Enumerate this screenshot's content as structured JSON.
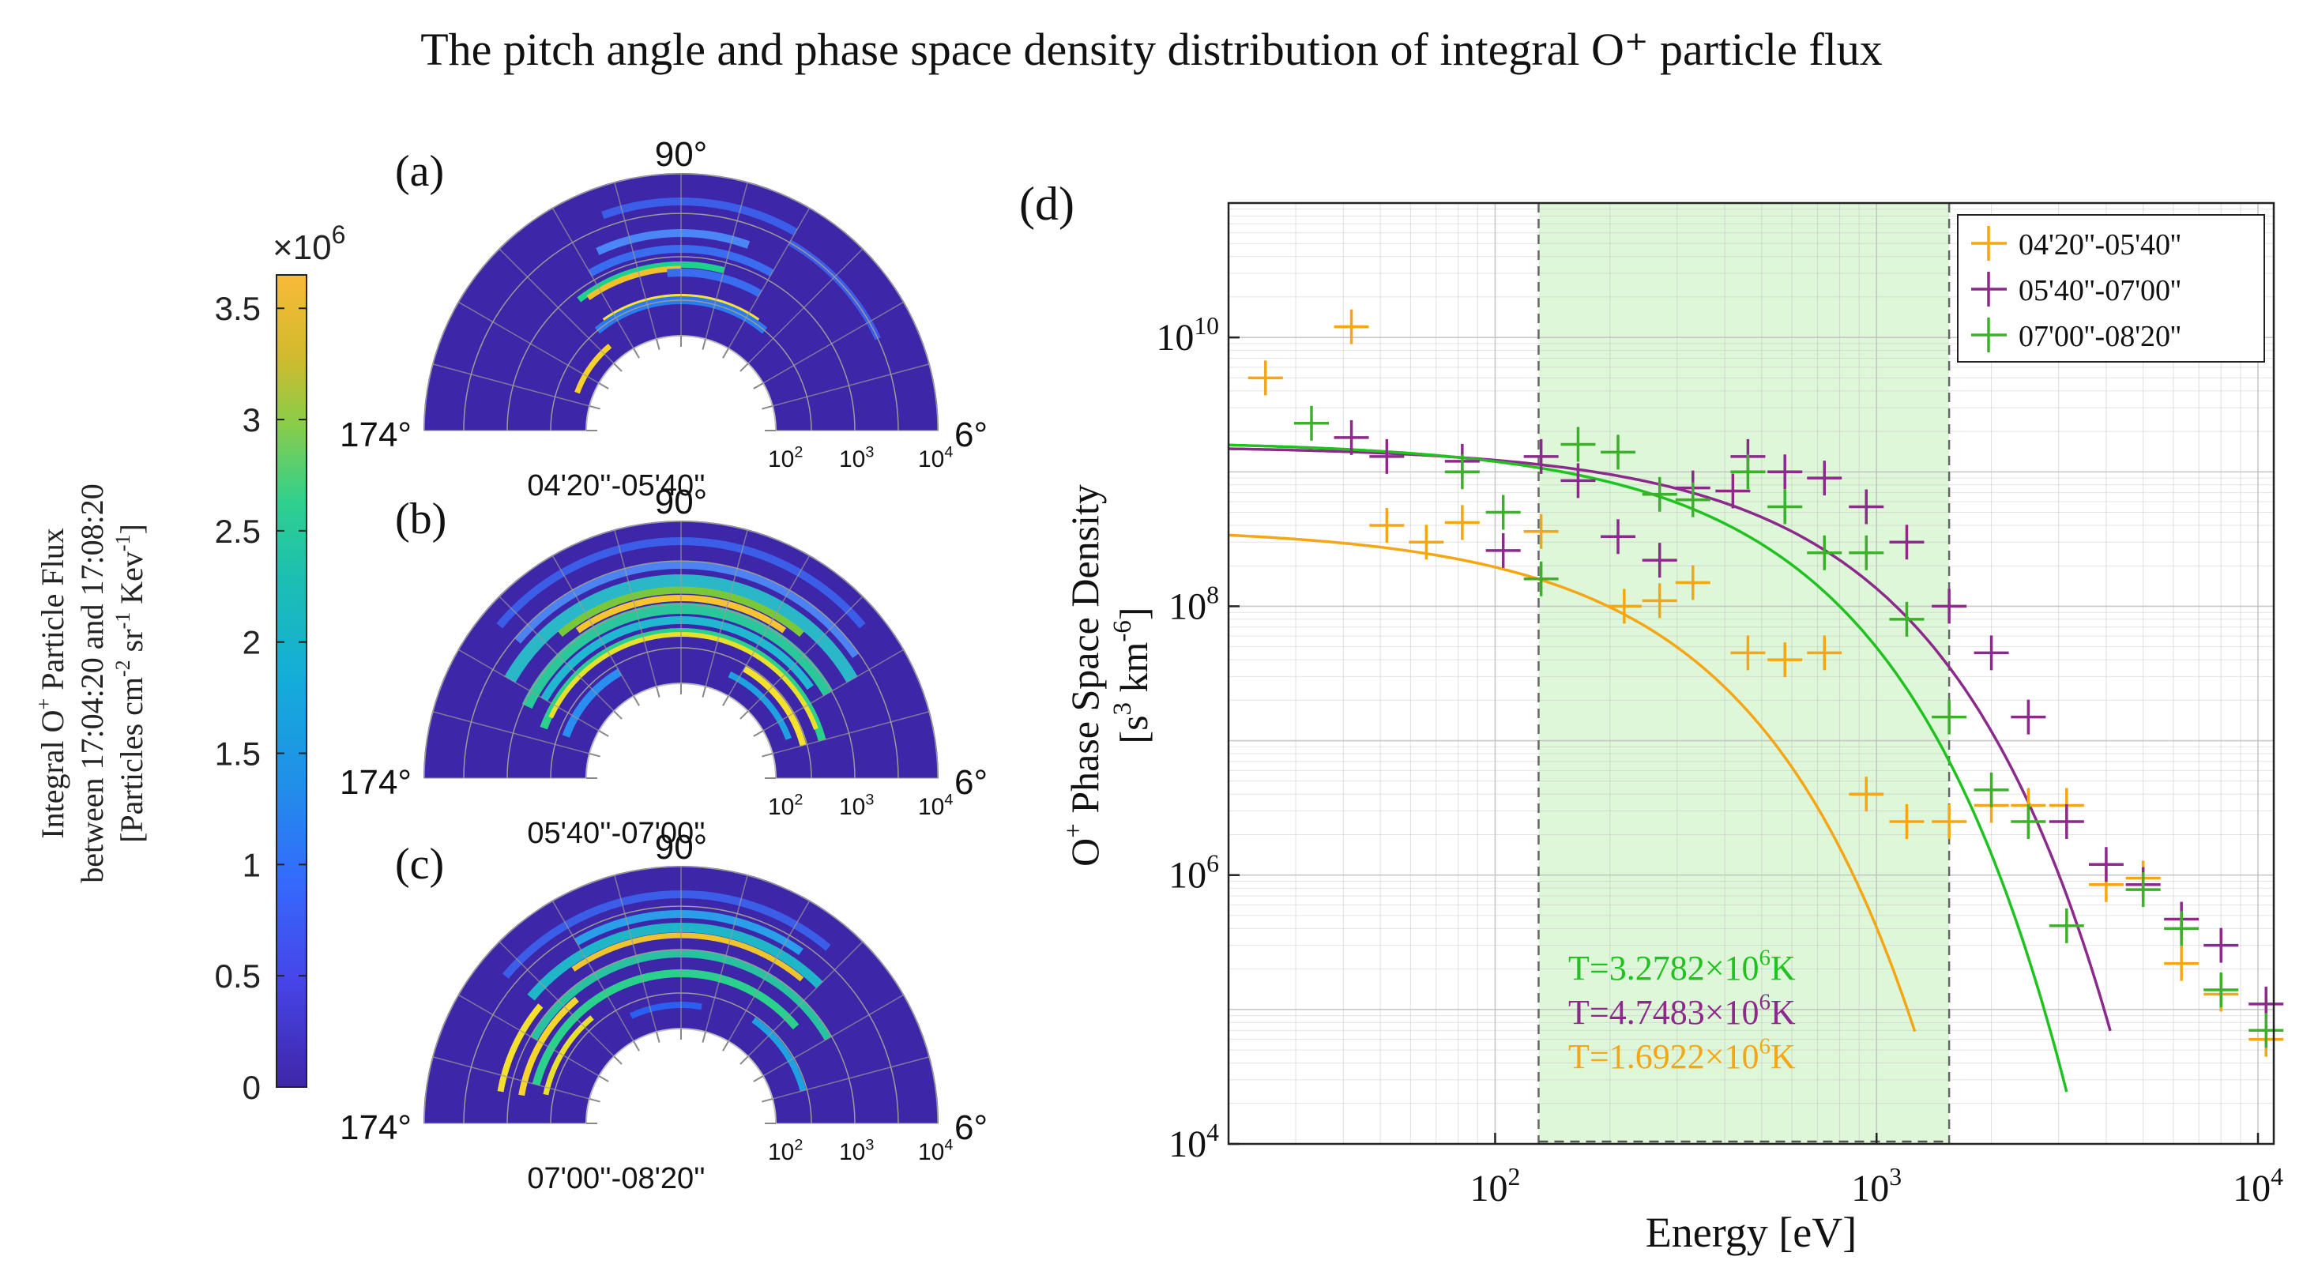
{
  "title": "The pitch angle and phase space density distribution  of integral O⁺ particle flux",
  "colorbar": {
    "multiplier": "×10",
    "multiplier_exp": "6",
    "ticks": [
      "0",
      "0.5",
      "1",
      "1.5",
      "2",
      "2.5",
      "3",
      "3.5"
    ],
    "tick_values": [
      0,
      0.5,
      1,
      1.5,
      2,
      2.5,
      3,
      3.5
    ],
    "max": 3.65,
    "label_line1_pre": "Integral O",
    "label_line1_sup": "+",
    "label_line1_post": " Particle Flux",
    "label_line2": "between 17:04:20 and 17:08:20",
    "label_line3": "[Particles cm",
    "label_line3_exp1": "-2",
    "label_line3_mid1": " sr",
    "label_line3_exp2": "-1",
    "label_line3_mid2": " Kev",
    "label_line3_exp3": "-1",
    "label_line3_end": "]"
  },
  "polar_panels": [
    {
      "letter": "(a)",
      "top": "90°",
      "left": "174°",
      "right": "6°",
      "subtitle": "04'20''-05'40''",
      "ticks": [
        "10",
        "10",
        "10"
      ],
      "tick_exps": [
        "2",
        "3",
        "4"
      ]
    },
    {
      "letter": "(b)",
      "top": "90°",
      "left": "174°",
      "right": "6°",
      "subtitle": "05'40''-07'00''",
      "ticks": [
        "10",
        "10",
        "10"
      ],
      "tick_exps": [
        "2",
        "3",
        "4"
      ]
    },
    {
      "letter": "(c)",
      "top": "90°",
      "left": "174°",
      "right": "6°",
      "subtitle": "07'00''-08'20''",
      "ticks": [
        "10",
        "10",
        "10"
      ],
      "tick_exps": [
        "2",
        "3",
        "4"
      ]
    }
  ],
  "chart_data": {
    "type": "scatter",
    "panel_label": "(d)",
    "xlabel": "Energy [eV]",
    "ylabel_pre": "O",
    "ylabel_sup": "+",
    "ylabel_post": " Phase Space Density",
    "ylabel_unit_pre": "[s",
    "ylabel_unit_exp1": "3",
    "ylabel_unit_mid": " km",
    "ylabel_unit_exp2": "-6",
    "ylabel_unit_end": "]",
    "xscale": "log",
    "yscale": "log",
    "xlim": [
      20,
      11000
    ],
    "ylim": [
      10000,
      100000000000
    ],
    "x_ticks": [
      {
        "base": "10",
        "exp": "2",
        "value": 100
      },
      {
        "base": "10",
        "exp": "3",
        "value": 1000
      },
      {
        "base": "10",
        "exp": "4",
        "value": 10000
      }
    ],
    "y_ticks": [
      {
        "base": "10",
        "exp": "4",
        "value": 10000
      },
      {
        "base": "10",
        "exp": "6",
        "value": 1000000
      },
      {
        "base": "10",
        "exp": "8",
        "value": 100000000
      },
      {
        "base": "10",
        "exp": "10",
        "value": 10000000000
      }
    ],
    "shaded_region": [
      130,
      1550
    ],
    "grid": true,
    "legend_position": "top-right",
    "series": [
      {
        "name": "04'20''-05'40''",
        "color": "#f5a614",
        "points": [
          [
            25,
            5000000000
          ],
          [
            42,
            12000000000
          ],
          [
            52,
            400000000
          ],
          [
            66,
            300000000
          ],
          [
            82,
            420000000
          ],
          [
            132,
            360000000
          ],
          [
            218,
            100000000
          ],
          [
            270,
            110000000
          ],
          [
            330,
            150000000
          ],
          [
            460,
            45000000
          ],
          [
            575,
            40000000
          ],
          [
            730,
            45000000
          ],
          [
            940,
            4000000
          ],
          [
            1200,
            2500000
          ],
          [
            1550,
            2500000
          ],
          [
            2000,
            3300000
          ],
          [
            2500,
            3300000
          ],
          [
            3150,
            3300000
          ],
          [
            4000,
            850000
          ],
          [
            5000,
            950000
          ],
          [
            6300,
            220000
          ],
          [
            8000,
            130000
          ],
          [
            10500,
            60000
          ]
        ]
      },
      {
        "name": "05'40''-07'00''",
        "color": "#8c2a8c",
        "points": [
          [
            42,
            1800000000
          ],
          [
            52,
            1300000000
          ],
          [
            82,
            1200000000
          ],
          [
            105,
            260000000
          ],
          [
            132,
            1300000000
          ],
          [
            165,
            860000000
          ],
          [
            210,
            330000000
          ],
          [
            270,
            220000000
          ],
          [
            330,
            760000000
          ],
          [
            420,
            720000000
          ],
          [
            460,
            1300000000
          ],
          [
            575,
            1000000000
          ],
          [
            730,
            900000000
          ],
          [
            940,
            550000000
          ],
          [
            1200,
            300000000
          ],
          [
            1550,
            100000000
          ],
          [
            2000,
            45000000
          ],
          [
            2500,
            15000000
          ],
          [
            3150,
            2500000
          ],
          [
            4000,
            1200000
          ],
          [
            5000,
            850000
          ],
          [
            6300,
            470000
          ],
          [
            8000,
            300000
          ],
          [
            10500,
            110000
          ]
        ]
      },
      {
        "name": "07'00''-08'20''",
        "color": "#3cb02a",
        "points": [
          [
            33,
            2300000000
          ],
          [
            82,
            1000000000
          ],
          [
            105,
            500000000
          ],
          [
            132,
            160000000
          ],
          [
            165,
            1600000000
          ],
          [
            210,
            1400000000
          ],
          [
            270,
            680000000
          ],
          [
            330,
            620000000
          ],
          [
            460,
            1000000000
          ],
          [
            575,
            550000000
          ],
          [
            730,
            250000000
          ],
          [
            940,
            250000000
          ],
          [
            1200,
            80000000
          ],
          [
            1550,
            15000000
          ],
          [
            2000,
            4300000
          ],
          [
            2500,
            2500000
          ],
          [
            3150,
            420000
          ],
          [
            5000,
            780000
          ],
          [
            6300,
            400000
          ],
          [
            8000,
            140000
          ],
          [
            10500,
            70000
          ]
        ]
      }
    ],
    "fits": [
      {
        "label": "T=1.6922×10",
        "exp": "6",
        "unit": "K",
        "color": "#f5a614",
        "T": 1692200,
        "A": 388000000.0,
        "xmax": 1260
      },
      {
        "label": "T=4.7483×10",
        "exp": "6",
        "unit": "K",
        "color": "#8c2a8c",
        "T": 4748300,
        "A": 1560000000.0,
        "xmax": 4100
      },
      {
        "label": "T=3.2782×10",
        "exp": "6",
        "unit": "K",
        "color": "#1fc21f",
        "T": 3278200,
        "A": 1700000000.0,
        "xmax": 3150
      }
    ],
    "fit_label_order": [
      2,
      1,
      0
    ]
  }
}
